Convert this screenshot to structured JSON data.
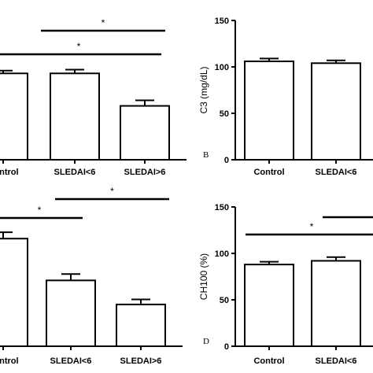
{
  "chart_data": [
    {
      "panel": "A",
      "type": "bar",
      "categories": [
        "Control",
        "SLEDAI<6",
        "SLEDAI>6"
      ],
      "values": [
        93,
        93,
        58
      ],
      "errors": [
        3,
        4,
        6
      ],
      "ylim": [
        0,
        150
      ],
      "ylabel": "",
      "yticks": [],
      "panel_letter": "",
      "significance": [
        {
          "from": 1,
          "to": 2,
          "label": "*"
        },
        {
          "from": 0,
          "to": 2,
          "label": "*"
        }
      ]
    },
    {
      "panel": "B",
      "type": "bar",
      "categories": [
        "Control",
        "SLEDAI<6"
      ],
      "values": [
        106,
        104
      ],
      "errors": [
        3,
        3
      ],
      "ylim": [
        0,
        150
      ],
      "ylabel": "C3 (mg/dL)",
      "yticks": [
        0,
        50,
        100,
        150
      ],
      "panel_letter": "B",
      "significance": []
    },
    {
      "panel": "C",
      "type": "bar",
      "categories": [
        "Control",
        "SLEDAI<6",
        "SLEDAI>6"
      ],
      "values": [
        85,
        52,
        33
      ],
      "errors": [
        5,
        5,
        4
      ],
      "ylim": [
        0,
        110
      ],
      "ylabel": "",
      "yticks": [],
      "panel_letter": "",
      "significance": [
        {
          "from": 0,
          "to": 1,
          "label": "*"
        },
        {
          "from": 1,
          "to": 2,
          "label": "*"
        }
      ]
    },
    {
      "panel": "D",
      "type": "bar",
      "categories": [
        "Control",
        "SLEDAI<6"
      ],
      "values": [
        88,
        92
      ],
      "errors": [
        3,
        4
      ],
      "ylim": [
        0,
        150
      ],
      "ylabel": "CH100 (%)",
      "yticks": [
        0,
        50,
        100,
        150
      ],
      "panel_letter": "D",
      "significance": [
        {
          "from": 1,
          "to": 2,
          "label": ""
        },
        {
          "from": 0,
          "to": 2,
          "label": "*"
        }
      ]
    }
  ]
}
